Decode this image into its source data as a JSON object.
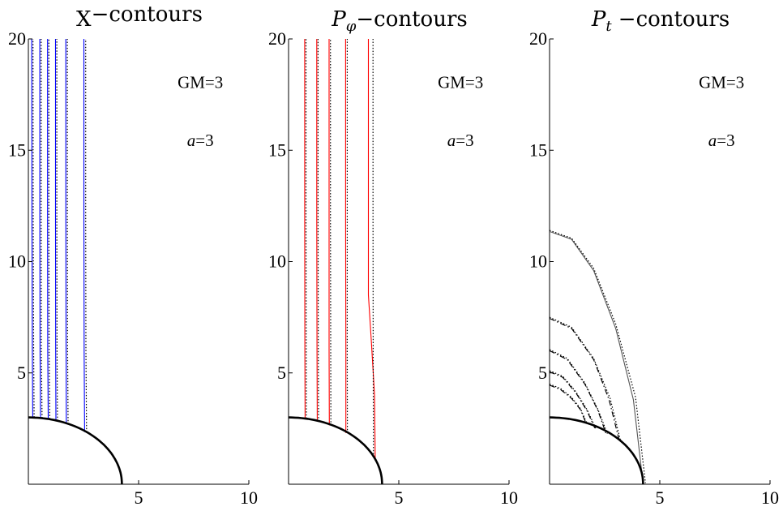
{
  "chart_data": [
    {
      "type": "line",
      "title": {
        "main": "X",
        "sub": "",
        "suffix": "−contours"
      },
      "xlabel": "",
      "ylabel": "",
      "xlim": [
        0,
        10
      ],
      "ylim": [
        0,
        20
      ],
      "xticks": [
        5,
        10
      ],
      "yticks": [
        5,
        10,
        15,
        20
      ],
      "grid": false,
      "annotations": [
        {
          "text": "GM=3",
          "x": 7.8,
          "y": 17.8,
          "italic": false
        },
        {
          "text": "=3",
          "prefix": "a",
          "x": 7.8,
          "y": 15.2,
          "italic": false
        }
      ],
      "curve_color": "#0000ff",
      "ellipse": {
        "a": 4.243,
        "b": 3
      },
      "series": [
        {
          "style": "solid",
          "color": "#0000ff",
          "points": [
            [
              0.2,
              3.0
            ],
            [
              0.18,
              6.0
            ],
            [
              0.16,
              12.0
            ],
            [
              0.15,
              20.0
            ]
          ]
        },
        {
          "style": "dotted",
          "color": "#000000",
          "points": [
            [
              0.26,
              3.0
            ],
            [
              0.24,
              6.0
            ],
            [
              0.22,
              12.0
            ],
            [
              0.21,
              20.0
            ]
          ]
        },
        {
          "style": "solid",
          "color": "#0000ff",
          "points": [
            [
              0.55,
              2.97
            ],
            [
              0.53,
              6.0
            ],
            [
              0.52,
              12.0
            ],
            [
              0.52,
              20.0
            ]
          ]
        },
        {
          "style": "dotted",
          "color": "#000000",
          "points": [
            [
              0.62,
              2.97
            ],
            [
              0.59,
              6.0
            ],
            [
              0.58,
              12.0
            ],
            [
              0.58,
              20.0
            ]
          ]
        },
        {
          "style": "solid",
          "color": "#0000ff",
          "points": [
            [
              0.9,
              2.93
            ],
            [
              0.88,
              6.0
            ],
            [
              0.87,
              12.0
            ],
            [
              0.87,
              20.0
            ]
          ]
        },
        {
          "style": "dotted",
          "color": "#000000",
          "points": [
            [
              0.97,
              2.93
            ],
            [
              0.94,
              6.0
            ],
            [
              0.93,
              12.0
            ],
            [
              0.93,
              20.0
            ]
          ]
        },
        {
          "style": "solid",
          "color": "#0000ff",
          "points": [
            [
              1.25,
              2.85
            ],
            [
              1.24,
              6.0
            ],
            [
              1.23,
              12.0
            ],
            [
              1.23,
              20.0
            ]
          ]
        },
        {
          "style": "dotted",
          "color": "#000000",
          "points": [
            [
              1.32,
              2.85
            ],
            [
              1.3,
              6.0
            ],
            [
              1.29,
              12.0
            ],
            [
              1.29,
              20.0
            ]
          ]
        },
        {
          "style": "solid",
          "color": "#0000ff",
          "points": [
            [
              1.72,
              2.7
            ],
            [
              1.71,
              6.0
            ],
            [
              1.7,
              12.0
            ],
            [
              1.7,
              20.0
            ]
          ]
        },
        {
          "style": "dotted",
          "color": "#000000",
          "points": [
            [
              1.8,
              2.7
            ],
            [
              1.78,
              6.0
            ],
            [
              1.77,
              12.0
            ],
            [
              1.77,
              20.0
            ]
          ]
        },
        {
          "style": "solid",
          "color": "#0000ff",
          "points": [
            [
              2.55,
              2.34
            ],
            [
              2.53,
              6.0
            ],
            [
              2.52,
              12.0
            ],
            [
              2.52,
              20.0
            ]
          ]
        },
        {
          "style": "dotted",
          "color": "#000000",
          "points": [
            [
              2.64,
              2.34
            ],
            [
              2.61,
              6.0
            ],
            [
              2.6,
              12.0
            ],
            [
              2.6,
              20.0
            ]
          ]
        }
      ]
    },
    {
      "type": "line",
      "title": {
        "main": "P",
        "sub": "φ",
        "suffix": "−contours"
      },
      "xlabel": "",
      "ylabel": "",
      "xlim": [
        0,
        10
      ],
      "ylim": [
        0,
        20
      ],
      "xticks": [
        5,
        10
      ],
      "yticks": [
        5,
        10,
        15,
        20
      ],
      "grid": false,
      "annotations": [
        {
          "text": "GM=3",
          "x": 7.8,
          "y": 17.8,
          "italic": false
        },
        {
          "text": "=3",
          "prefix": "a",
          "x": 7.8,
          "y": 15.2,
          "italic": false
        }
      ],
      "curve_color": "#ff0000",
      "ellipse": {
        "a": 4.243,
        "b": 3
      },
      "series": [
        {
          "style": "solid",
          "color": "#ff0000",
          "points": [
            [
              0.75,
              2.95
            ],
            [
              0.74,
              6.0
            ],
            [
              0.73,
              12.0
            ],
            [
              0.73,
              20.0
            ]
          ]
        },
        {
          "style": "dotted",
          "color": "#000000",
          "points": [
            [
              0.81,
              2.95
            ],
            [
              0.8,
              6.0
            ],
            [
              0.79,
              12.0
            ],
            [
              0.79,
              20.0
            ]
          ]
        },
        {
          "style": "solid",
          "color": "#ff0000",
          "points": [
            [
              1.3,
              2.83
            ],
            [
              1.29,
              6.0
            ],
            [
              1.28,
              12.0
            ],
            [
              1.28,
              20.0
            ]
          ]
        },
        {
          "style": "dotted",
          "color": "#000000",
          "points": [
            [
              1.36,
              2.83
            ],
            [
              1.35,
              6.0
            ],
            [
              1.34,
              12.0
            ],
            [
              1.34,
              20.0
            ]
          ]
        },
        {
          "style": "solid",
          "color": "#ff0000",
          "points": [
            [
              1.85,
              2.64
            ],
            [
              1.84,
              6.0
            ],
            [
              1.84,
              12.0
            ],
            [
              1.84,
              20.0
            ]
          ]
        },
        {
          "style": "dotted",
          "color": "#000000",
          "points": [
            [
              1.92,
              2.64
            ],
            [
              1.91,
              6.0
            ],
            [
              1.9,
              12.0
            ],
            [
              1.9,
              20.0
            ]
          ]
        },
        {
          "style": "solid",
          "color": "#ff0000",
          "points": [
            [
              2.6,
              2.3
            ],
            [
              2.6,
              6.0
            ],
            [
              2.59,
              12.0
            ],
            [
              2.59,
              20.0
            ]
          ]
        },
        {
          "style": "dotted",
          "color": "#000000",
          "points": [
            [
              2.67,
              2.3
            ],
            [
              2.66,
              6.0
            ],
            [
              2.66,
              12.0
            ],
            [
              2.66,
              20.0
            ]
          ]
        },
        {
          "style": "solid",
          "color": "#ff0000",
          "points": [
            [
              3.93,
              1.18
            ],
            [
              3.9,
              4.0
            ],
            [
              3.75,
              6.5
            ],
            [
              3.62,
              8.5
            ],
            [
              3.62,
              12.0
            ],
            [
              3.62,
              20.0
            ]
          ]
        },
        {
          "style": "dotted",
          "color": "#000000",
          "points": [
            [
              3.85,
              1.35
            ],
            [
              3.84,
              6.0
            ],
            [
              3.83,
              12.0
            ],
            [
              3.83,
              20.0
            ]
          ]
        }
      ]
    },
    {
      "type": "line",
      "title": {
        "main": "P",
        "sub": "t",
        "suffix": " −contours"
      },
      "xlabel": "",
      "ylabel": "",
      "xlim": [
        0,
        10
      ],
      "ylim": [
        0,
        20
      ],
      "xticks": [
        5,
        10
      ],
      "yticks": [
        5,
        10,
        15,
        20
      ],
      "grid": false,
      "annotations": [
        {
          "text": "GM=3",
          "x": 7.8,
          "y": 17.8,
          "italic": false
        },
        {
          "text": "=3",
          "prefix": "a",
          "x": 7.8,
          "y": 15.2,
          "italic": false
        }
      ],
      "curve_color": "#000000",
      "ellipse": {
        "a": 4.243,
        "b": 3
      },
      "series": [
        {
          "style": "dashdot",
          "color": "#000000",
          "points": [
            [
              0,
              4.45
            ],
            [
              0.5,
              4.25
            ],
            [
              1.0,
              3.85
            ],
            [
              1.4,
              3.35
            ],
            [
              1.65,
              2.75
            ]
          ]
        },
        {
          "style": "dotted",
          "color": "#000000",
          "points": [
            [
              0,
              4.5
            ],
            [
              0.5,
              4.3
            ],
            [
              1.0,
              3.9
            ],
            [
              1.4,
              3.4
            ],
            [
              1.7,
              2.72
            ]
          ]
        },
        {
          "style": "dashdot",
          "color": "#000000",
          "points": [
            [
              0,
              5.05
            ],
            [
              0.6,
              4.8
            ],
            [
              1.2,
              4.1
            ],
            [
              1.7,
              3.3
            ],
            [
              2.05,
              2.52
            ]
          ]
        },
        {
          "style": "dotted",
          "color": "#000000",
          "points": [
            [
              0,
              5.1
            ],
            [
              0.6,
              4.85
            ],
            [
              1.2,
              4.15
            ],
            [
              1.7,
              3.35
            ],
            [
              2.1,
              2.5
            ]
          ]
        },
        {
          "style": "dashdot",
          "color": "#000000",
          "points": [
            [
              0,
              6.0
            ],
            [
              0.8,
              5.6
            ],
            [
              1.6,
              4.5
            ],
            [
              2.2,
              3.3
            ],
            [
              2.55,
              2.3
            ]
          ]
        },
        {
          "style": "dotted",
          "color": "#000000",
          "points": [
            [
              0,
              6.05
            ],
            [
              0.8,
              5.65
            ],
            [
              1.6,
              4.55
            ],
            [
              2.2,
              3.35
            ],
            [
              2.62,
              2.27
            ]
          ]
        },
        {
          "style": "dashdot",
          "color": "#000000",
          "points": [
            [
              0,
              7.45
            ],
            [
              1.0,
              7.0
            ],
            [
              2.0,
              5.6
            ],
            [
              2.7,
              3.8
            ],
            [
              3.15,
              2.01
            ]
          ]
        },
        {
          "style": "dotted",
          "color": "#000000",
          "points": [
            [
              0,
              7.5
            ],
            [
              1.0,
              7.05
            ],
            [
              2.0,
              5.65
            ],
            [
              2.75,
              3.85
            ],
            [
              3.22,
              1.95
            ]
          ]
        },
        {
          "style": "solid",
          "color": "#555555",
          "points": [
            [
              0,
              11.35
            ],
            [
              1.0,
              11.0
            ],
            [
              2.0,
              9.6
            ],
            [
              3.0,
              7.0
            ],
            [
              3.8,
              3.8
            ],
            [
              4.24,
              0.05
            ]
          ]
        },
        {
          "style": "dotted",
          "color": "#000000",
          "points": [
            [
              0,
              11.4
            ],
            [
              1.0,
              11.05
            ],
            [
              2.0,
              9.7
            ],
            [
              3.0,
              7.2
            ],
            [
              3.9,
              3.9
            ],
            [
              4.35,
              0.05
            ]
          ]
        }
      ]
    }
  ]
}
